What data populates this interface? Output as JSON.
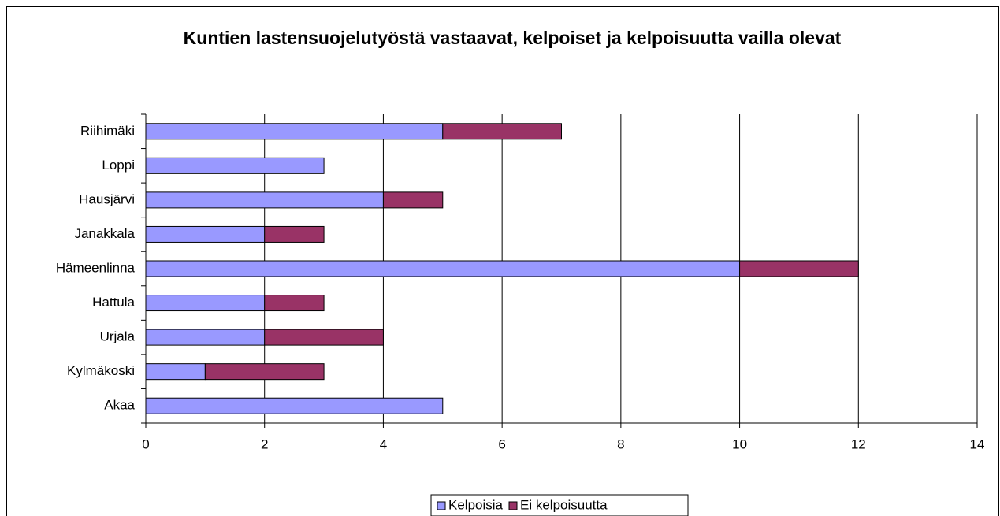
{
  "chart_data": {
    "type": "stacked-barh",
    "title": "Kuntien lastensuojelutyöstä vastaavat, kelpoiset ja kelpoisuutta vailla olevat",
    "categories": [
      "Riihimäki",
      "Loppi",
      "Hausjärvi",
      "Janakkala",
      "Hämeenlinna",
      "Hattula",
      "Urjala",
      "Kylmäkoski",
      "Akaa"
    ],
    "series": [
      {
        "name": "Kelpoisia",
        "color": "#9999ff",
        "values": [
          5,
          3,
          4,
          2,
          10,
          2,
          2,
          1,
          5
        ]
      },
      {
        "name": "Ei kelpoisuutta",
        "color": "#993366",
        "values": [
          2,
          0,
          1,
          1,
          2,
          1,
          2,
          2,
          0
        ]
      }
    ],
    "xlim": [
      0,
      14
    ],
    "xticks": [
      0,
      2,
      4,
      6,
      8,
      10,
      12,
      14
    ],
    "grid": true,
    "legend": "bottom"
  }
}
